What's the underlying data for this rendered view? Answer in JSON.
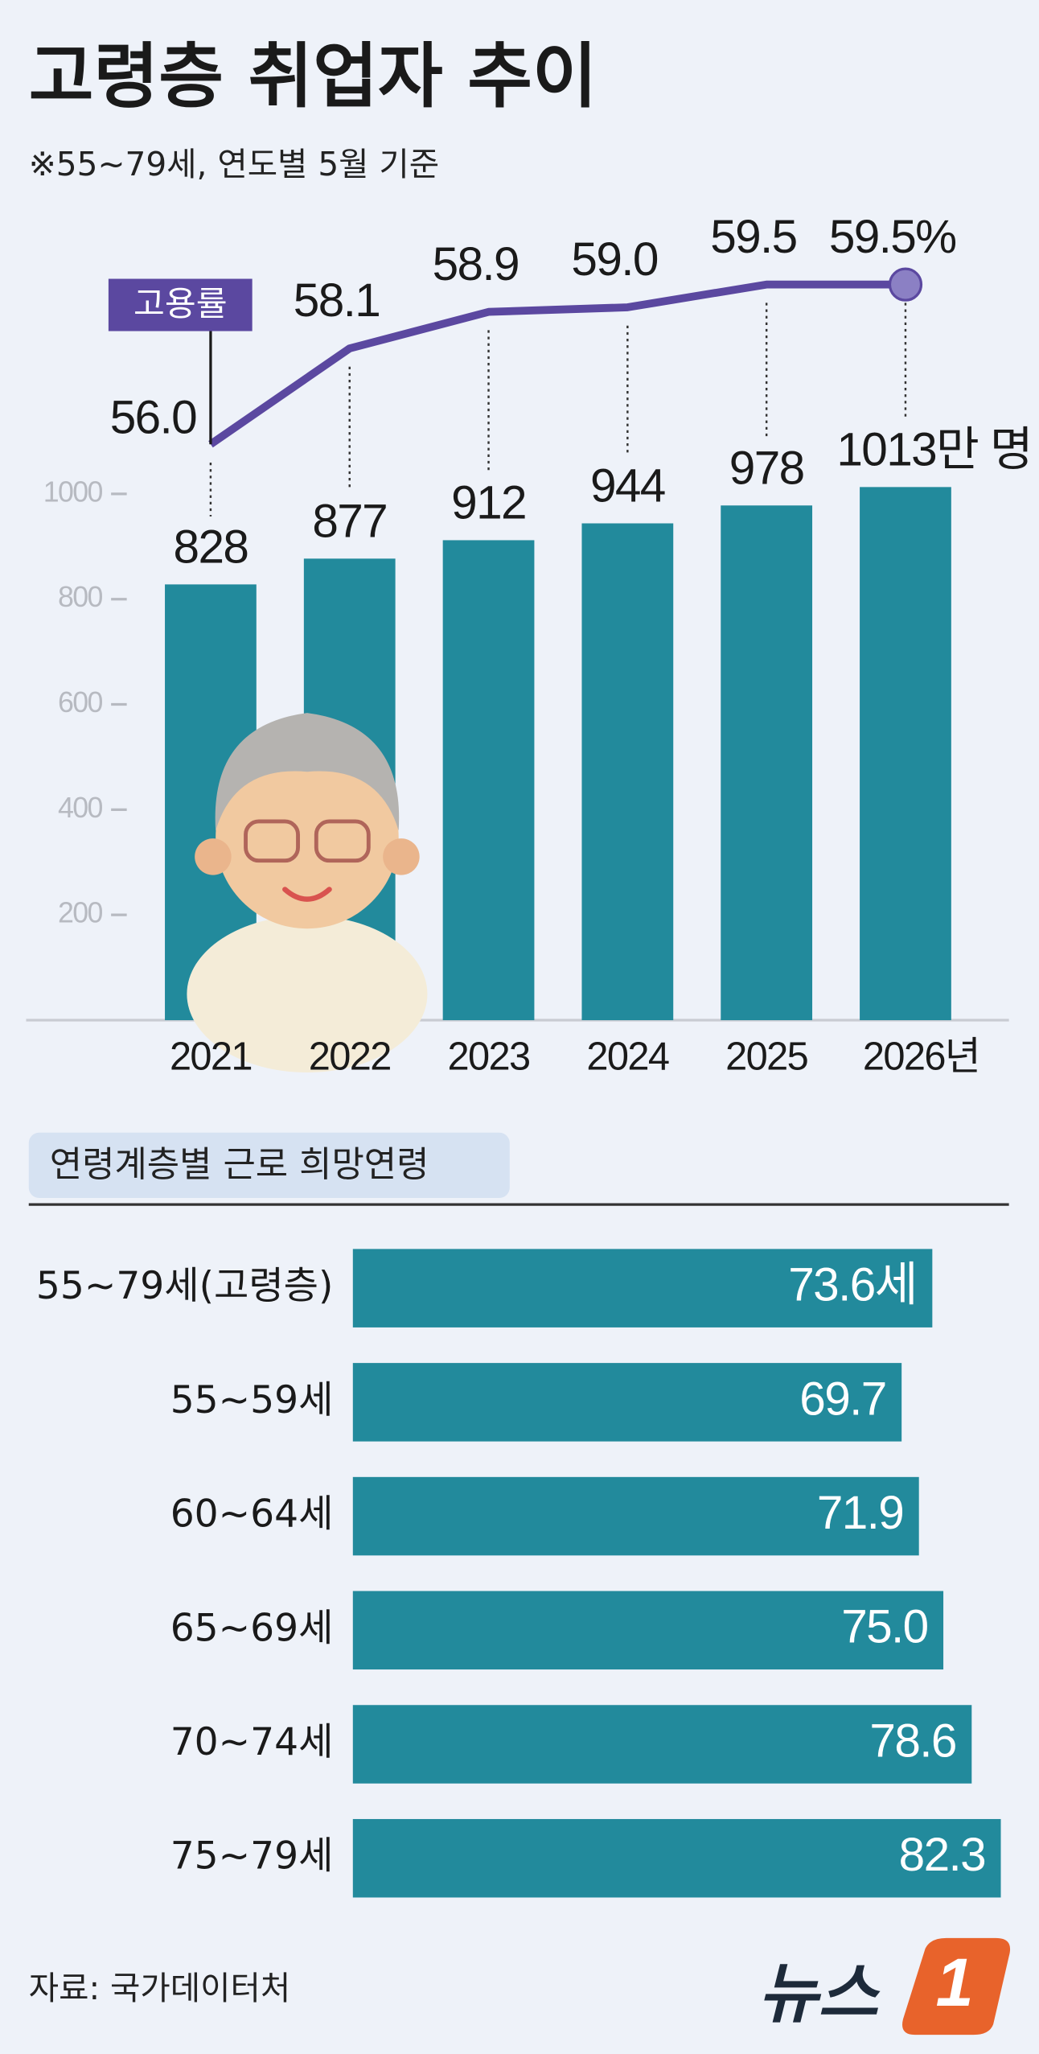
{
  "chart_data": [
    {
      "type": "bar",
      "title": "고령층 취업자 추이",
      "subtitle": "※55~79세, 연도별 5월 기준",
      "categories": [
        "2021",
        "2022",
        "2023",
        "2024",
        "2025",
        "2026년"
      ],
      "values": [
        828,
        877,
        912,
        944,
        978,
        1013
      ],
      "value_labels": [
        "828",
        "877",
        "912",
        "944",
        "978",
        "1013만 명"
      ],
      "color": "#228a9c",
      "ylim": [
        0,
        1100
      ],
      "yticks": [
        200,
        400,
        600,
        800,
        1000
      ],
      "y2lim": [
        50,
        61
      ],
      "series": [
        {
          "name": "고용률",
          "type": "line",
          "axis": "y2",
          "color": "#5b48a0",
          "values": [
            56.0,
            58.1,
            58.9,
            59.0,
            59.5,
            59.5
          ],
          "value_labels": [
            "56.0",
            "58.1",
            "58.9",
            "59.0",
            "59.5",
            "59.5%"
          ]
        }
      ]
    },
    {
      "type": "hbar",
      "title": "연령계층별 근로 희망연령",
      "categories": [
        "55~79세(고령층)",
        "55~59세",
        "60~64세",
        "65~69세",
        "70~74세",
        "75~79세"
      ],
      "values": [
        73.6,
        69.7,
        71.9,
        75.0,
        78.6,
        82.3
      ],
      "value_labels": [
        "73.6세",
        "69.7",
        "71.9",
        "75.0",
        "78.6",
        "82.3"
      ],
      "color": "#228a9c",
      "xlim": [
        0,
        83
      ]
    }
  ],
  "source": "자료: 국가데이터처",
  "logo": {
    "text": "뉴스",
    "mark": "1"
  }
}
